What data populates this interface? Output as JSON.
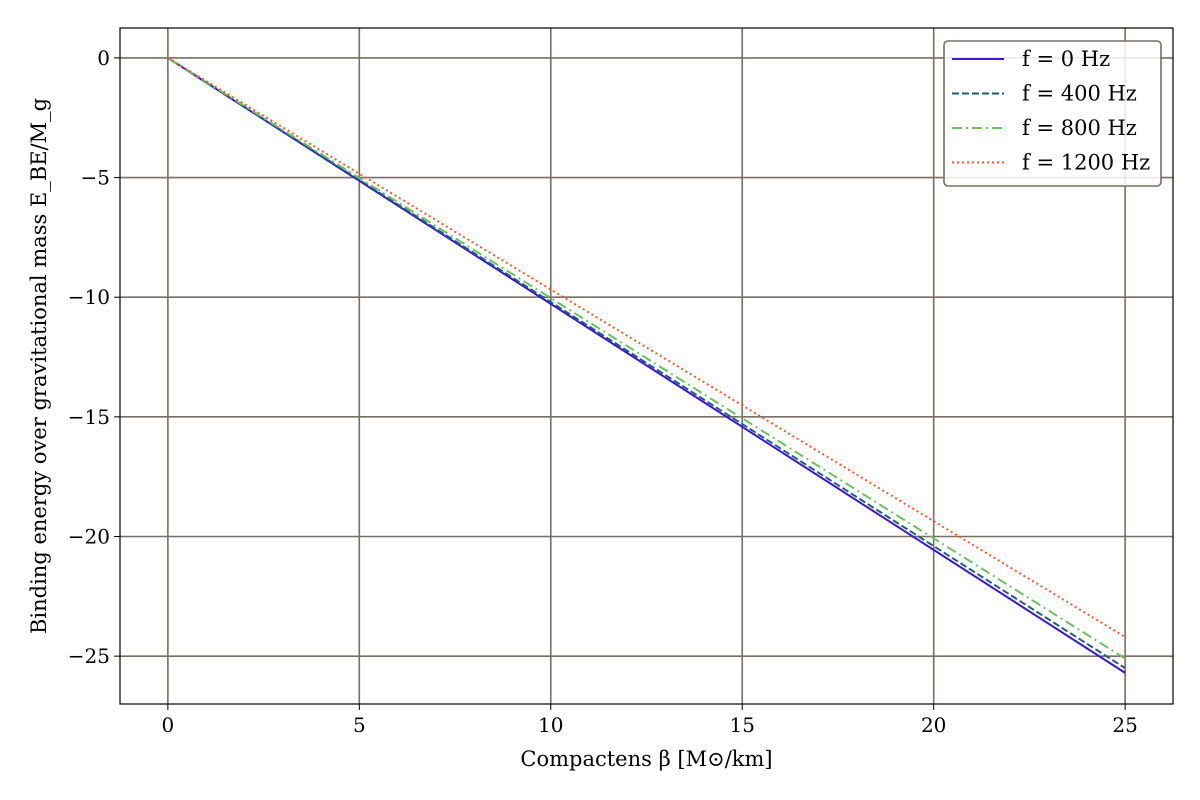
{
  "chart_data": {
    "type": "line",
    "xlabel": "Compactens β [M⊙/km]",
    "ylabel": "Binding energy over gravitational mass E_BE/M_g",
    "xlim": [
      -1.25,
      26.25
    ],
    "ylim": [
      -27,
      1.25
    ],
    "xticks": [
      0,
      5,
      10,
      15,
      20,
      25
    ],
    "yticks": [
      0,
      -5,
      -10,
      -15,
      -20,
      -25
    ],
    "xtick_labels": [
      "0",
      "5",
      "10",
      "15",
      "20",
      "25"
    ],
    "ytick_labels": [
      "0",
      "−5",
      "−10",
      "−15",
      "−20",
      "−25"
    ],
    "grid": true,
    "legend_position": "top-right",
    "colors": {
      "grid": "#7a6e62",
      "axes": "#000000"
    },
    "series": [
      {
        "name": "f = 0 Hz",
        "color": "#3a16d8",
        "dash": "solid",
        "x": [
          0,
          25
        ],
        "y": [
          0,
          -25.7
        ]
      },
      {
        "name": "f = 400 Hz",
        "color": "#1a5f7a",
        "dash": "dashed",
        "x": [
          0,
          25
        ],
        "y": [
          0,
          -25.5
        ]
      },
      {
        "name": "f = 800 Hz",
        "color": "#6cc05e",
        "dash": "dashdot",
        "x": [
          0,
          25
        ],
        "y": [
          0,
          -25.1
        ]
      },
      {
        "name": "f = 1200 Hz",
        "color": "#f55a2c",
        "dash": "dotted",
        "x": [
          0,
          25
        ],
        "y": [
          0,
          -24.2
        ]
      }
    ]
  }
}
